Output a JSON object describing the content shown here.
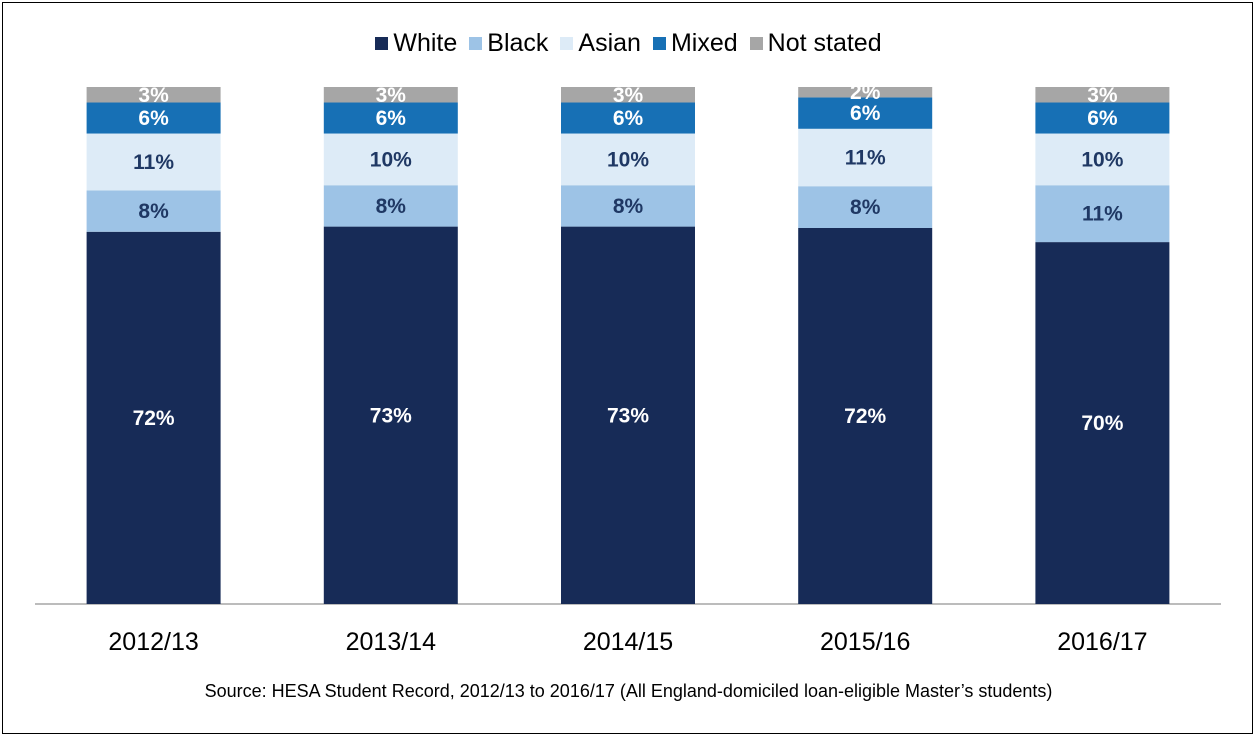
{
  "chart_data": {
    "type": "bar",
    "stacked": true,
    "categories": [
      "2012/13",
      "2013/14",
      "2014/15",
      "2015/16",
      "2016/17"
    ],
    "series": [
      {
        "name": "White",
        "color": "#172B57",
        "values": [
          72,
          73,
          73,
          72,
          70
        ],
        "labels": [
          "72%",
          "73%",
          "73%",
          "72%",
          "70%"
        ]
      },
      {
        "name": "Black",
        "color": "#9DC3E6",
        "values": [
          8,
          8,
          8,
          8,
          11
        ],
        "labels": [
          "8%",
          "8%",
          "8%",
          "8%",
          "11%"
        ]
      },
      {
        "name": "Asian",
        "color": "#DDEBF7",
        "values": [
          11,
          10,
          10,
          11,
          10
        ],
        "labels": [
          "11%",
          "10%",
          "10%",
          "11%",
          "10%"
        ]
      },
      {
        "name": "Mixed",
        "color": "#1770B5",
        "values": [
          6,
          6,
          6,
          6,
          6
        ],
        "labels": [
          "6%",
          "6%",
          "6%",
          "6%",
          "6%"
        ]
      },
      {
        "name": "Not stated",
        "color": "#A6A6A6",
        "values": [
          3,
          3,
          3,
          2,
          3
        ],
        "labels": [
          "3%",
          "3%",
          "3%",
          "2%",
          "3%"
        ]
      }
    ],
    "ylim": [
      0,
      100
    ],
    "legend_position": "top",
    "grid": false,
    "source": "Source: HESA Student Record, 2012/13 to 2016/17 (All England-domiciled loan-eligible Master’s students)"
  }
}
